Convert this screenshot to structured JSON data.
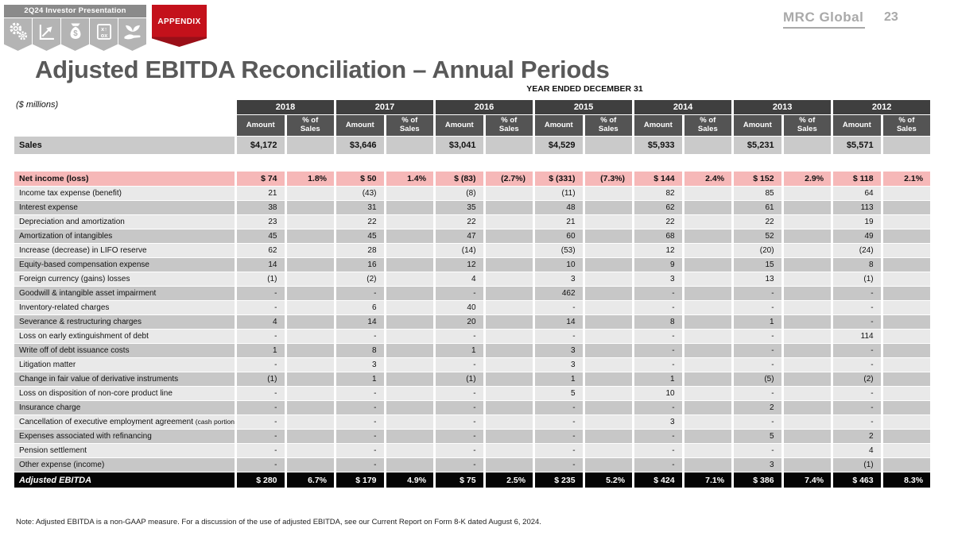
{
  "header": {
    "banner_title": "2Q24  Investor Presentation",
    "appendix_label": "APPENDIX",
    "icons": [
      "gears-icon",
      "line-chart-icon",
      "money-bag-icon",
      "strategy-icon",
      "hand-plant-icon"
    ],
    "logo_text": "MRC Global",
    "page_number": "23"
  },
  "title": "Adjusted EBITDA Reconciliation – Annual Periods",
  "footnote": "Note: Adjusted EBITDA is a non-GAAP measure. For a discussion of the use of adjusted EBITDA, see our Current Report on Form 8-K dated August 6, 2024.",
  "colors": {
    "accent_red": "#c4111b",
    "year_header_bg": "#3f3f3f",
    "subheader_bg": "#545454",
    "sales_row_bg": "#cacaca",
    "light_row_bg": "#e9e9e9",
    "dark_row_bg": "#c7c7c7",
    "net_income_bg": "#f6b8b8",
    "ebitda_bg": "#050505"
  },
  "table": {
    "caption": "YEAR ENDED DECEMBER 31",
    "units_label": "($ millions)",
    "years": [
      "2018",
      "2017",
      "2016",
      "2015",
      "2014",
      "2013",
      "2012"
    ],
    "subheaders": {
      "amount": "Amount",
      "pct_lines": [
        "% of",
        "Sales"
      ]
    },
    "sales_row": {
      "label": "Sales",
      "amounts": [
        "$4,172",
        "$3,646",
        "$3,041",
        "$4,529",
        "$5,933",
        "$5,231",
        "$5,571"
      ]
    },
    "net_income_row": {
      "label": "Net income (loss)",
      "cells": [
        "$ 74",
        "1.8%",
        "$ 50",
        "1.4%",
        "$ (83)",
        "(2.7%)",
        "$ (331)",
        "(7.3%)",
        "$ 144",
        "2.4%",
        "$ 152",
        "2.9%",
        "$ 118",
        "2.1%"
      ]
    },
    "rows": [
      {
        "label": "Income tax expense (benefit)",
        "values": [
          "21",
          "(43)",
          "(8)",
          "(11)",
          "82",
          "85",
          "64"
        ]
      },
      {
        "label": "Interest expense",
        "values": [
          "38",
          "31",
          "35",
          "48",
          "62",
          "61",
          "113"
        ]
      },
      {
        "label": "Depreciation and amortization",
        "values": [
          "23",
          "22",
          "22",
          "21",
          "22",
          "22",
          "19"
        ]
      },
      {
        "label": "Amortization of intangibles",
        "values": [
          "45",
          "45",
          "47",
          "60",
          "68",
          "52",
          "49"
        ]
      },
      {
        "label": "Increase (decrease) in LIFO reserve",
        "values": [
          "62",
          "28",
          "(14)",
          "(53)",
          "12",
          "(20)",
          "(24)"
        ]
      },
      {
        "label": "Equity-based compensation expense",
        "values": [
          "14",
          "16",
          "12",
          "10",
          "9",
          "15",
          "8"
        ]
      },
      {
        "label": "Foreign currency (gains) losses",
        "values": [
          "(1)",
          "(2)",
          "4",
          "3",
          "3",
          "13",
          "(1)"
        ]
      },
      {
        "label": "Goodwill & intangible asset impairment",
        "values": [
          "-",
          "-",
          "-",
          "462",
          "-",
          "-",
          "-"
        ]
      },
      {
        "label": "Inventory-related charges",
        "values": [
          "-",
          "6",
          "40",
          "-",
          "-",
          "-",
          "-"
        ]
      },
      {
        "label": "Severance & restructuring charges",
        "values": [
          "4",
          "14",
          "20",
          "14",
          "8",
          "1",
          "-"
        ]
      },
      {
        "label": "Loss on early extinguishment of debt",
        "values": [
          "-",
          "-",
          "-",
          "-",
          "-",
          "-",
          "114"
        ]
      },
      {
        "label": "Write off of debt issuance costs",
        "values": [
          "1",
          "8",
          "1",
          "3",
          "-",
          "-",
          "-"
        ]
      },
      {
        "label": "Litigation matter",
        "values": [
          "-",
          "3",
          "-",
          "3",
          "-",
          "-",
          "-"
        ]
      },
      {
        "label": "Change in fair value of derivative instruments",
        "values": [
          "(1)",
          "1",
          "(1)",
          "1",
          "1",
          "(5)",
          "(2)"
        ]
      },
      {
        "label": "Loss on disposition of non-core product line",
        "values": [
          "-",
          "-",
          "-",
          "5",
          "10",
          "-",
          "-"
        ]
      },
      {
        "label": "Insurance charge",
        "values": [
          "-",
          "-",
          "-",
          "-",
          "-",
          "2",
          "-"
        ]
      },
      {
        "label": "Cancellation of executive employment agreement",
        "label_suffix": "(cash portion)",
        "values": [
          "-",
          "-",
          "-",
          "-",
          "3",
          "-",
          "-"
        ]
      },
      {
        "label": "Expenses associated with refinancing",
        "values": [
          "-",
          "-",
          "-",
          "-",
          "-",
          "5",
          "2"
        ]
      },
      {
        "label": "Pension settlement",
        "values": [
          "-",
          "-",
          "-",
          "-",
          "-",
          "-",
          "4"
        ]
      },
      {
        "label": "Other expense (income)",
        "values": [
          "-",
          "-",
          "-",
          "-",
          "-",
          "3",
          "(1)"
        ]
      }
    ],
    "ebitda_row": {
      "label": "Adjusted EBITDA",
      "cells": [
        "$ 280",
        "6.7%",
        "$ 179",
        "4.9%",
        "$ 75",
        "2.5%",
        "$ 235",
        "5.2%",
        "$ 424",
        "7.1%",
        "$ 386",
        "7.4%",
        "$ 463",
        "8.3%"
      ]
    }
  }
}
